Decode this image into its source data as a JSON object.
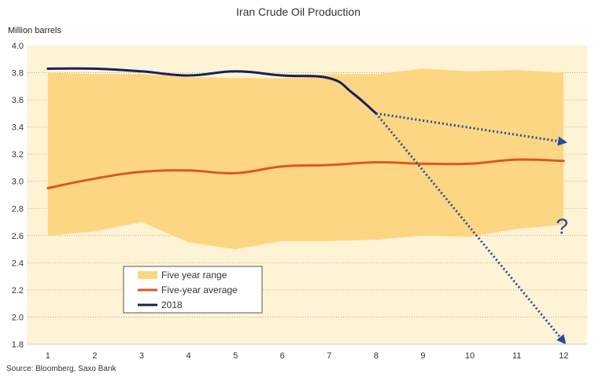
{
  "chart_data": {
    "type": "line",
    "title": "Iran Crude Oil Production",
    "unit_label": "Million barrels",
    "source": "Source: Bloomberg, Saxo Bank",
    "x": [
      1,
      2,
      3,
      4,
      5,
      6,
      7,
      8,
      9,
      10,
      11,
      12
    ],
    "xlim": [
      0.55,
      12.5
    ],
    "ylim": [
      1.8,
      4.0
    ],
    "yticks": [
      1.8,
      2.0,
      2.2,
      2.4,
      2.6,
      2.8,
      3.0,
      3.2,
      3.4,
      3.6,
      3.8,
      4.0
    ],
    "grid": "horizontal dotted",
    "legend_position": "lower-left",
    "range": {
      "name": "Five year range",
      "color": "#fdd683",
      "x": [
        1,
        2,
        3,
        4,
        5,
        6,
        7,
        8,
        9,
        10,
        11,
        12
      ],
      "upper": [
        3.8,
        3.79,
        3.79,
        3.77,
        3.76,
        3.76,
        3.79,
        3.79,
        3.83,
        3.81,
        3.82,
        3.8
      ],
      "lower": [
        2.6,
        2.63,
        2.7,
        2.55,
        2.5,
        2.56,
        2.56,
        2.57,
        2.6,
        2.59,
        2.65,
        2.68
      ]
    },
    "series": [
      {
        "name": "Five-year average",
        "color": "#d95a1e",
        "x": [
          1,
          2,
          3,
          4,
          5,
          6,
          7,
          8,
          9,
          10,
          11,
          12
        ],
        "values": [
          2.95,
          3.02,
          3.07,
          3.08,
          3.06,
          3.11,
          3.12,
          3.14,
          3.13,
          3.13,
          3.16,
          3.15
        ]
      },
      {
        "name": "2018",
        "color": "#14215c",
        "x": [
          1,
          2,
          3,
          4,
          5,
          6,
          7,
          7.5,
          8
        ],
        "values": [
          3.83,
          3.83,
          3.81,
          3.78,
          3.81,
          3.78,
          3.76,
          3.65,
          3.5
        ]
      }
    ],
    "projections": [
      {
        "from": [
          8,
          3.5
        ],
        "to": [
          12,
          3.29
        ],
        "color": "#1f4e9c"
      },
      {
        "from": [
          8,
          3.5
        ],
        "to": [
          12,
          1.82
        ],
        "color": "#1f4e9c"
      }
    ],
    "annotation": {
      "text": "?",
      "x": 12,
      "y": 2.67
    }
  }
}
